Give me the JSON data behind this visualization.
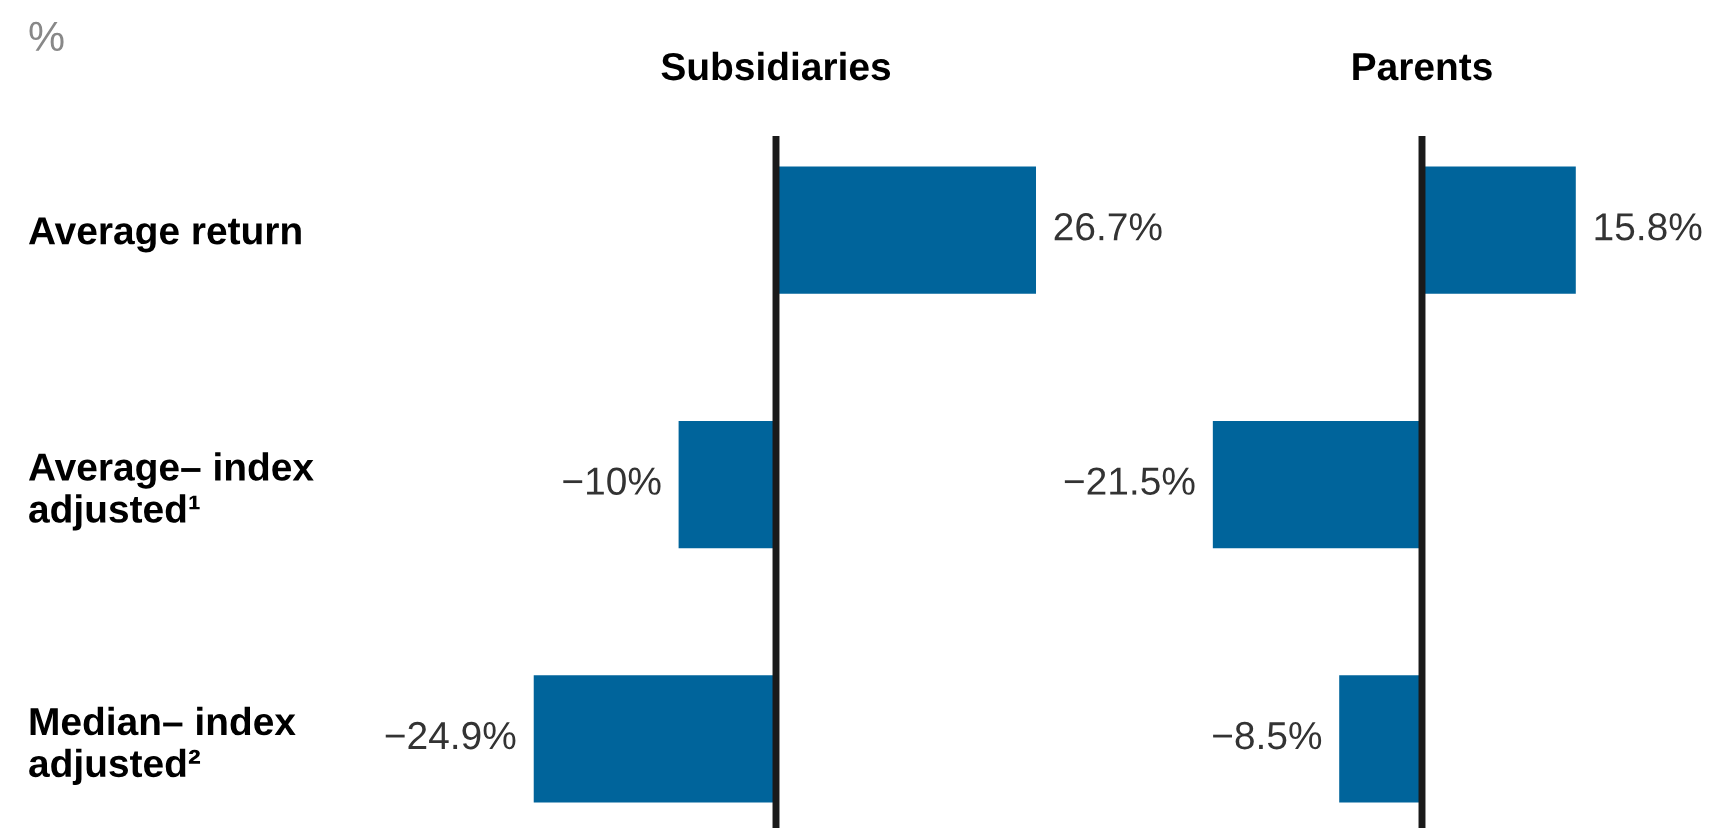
{
  "chart_data": [
    {
      "type": "bar",
      "orientation": "horizontal",
      "title": "Subsidiaries",
      "annotations": [
        "%"
      ],
      "categories": [
        "Average return",
        "Average– index\nadjusted¹",
        "Median– index\nadjusted²"
      ],
      "values": [
        26.7,
        -10,
        -24.9
      ],
      "value_labels": [
        "26.7%",
        "−10%",
        "−24.9%"
      ],
      "color": "#00649b",
      "tick_labels": "y",
      "grid": false,
      "legend": false
    },
    {
      "type": "bar",
      "orientation": "horizontal",
      "title": "Parents",
      "categories": [
        null,
        null,
        null
      ],
      "values": [
        15.8,
        -21.5,
        -8.5
      ],
      "value_labels": [
        "15.8%",
        "−21.5%",
        "−8.5%"
      ],
      "color": "#00649b",
      "tick_labels": false,
      "grid": false,
      "legend": false
    }
  ]
}
